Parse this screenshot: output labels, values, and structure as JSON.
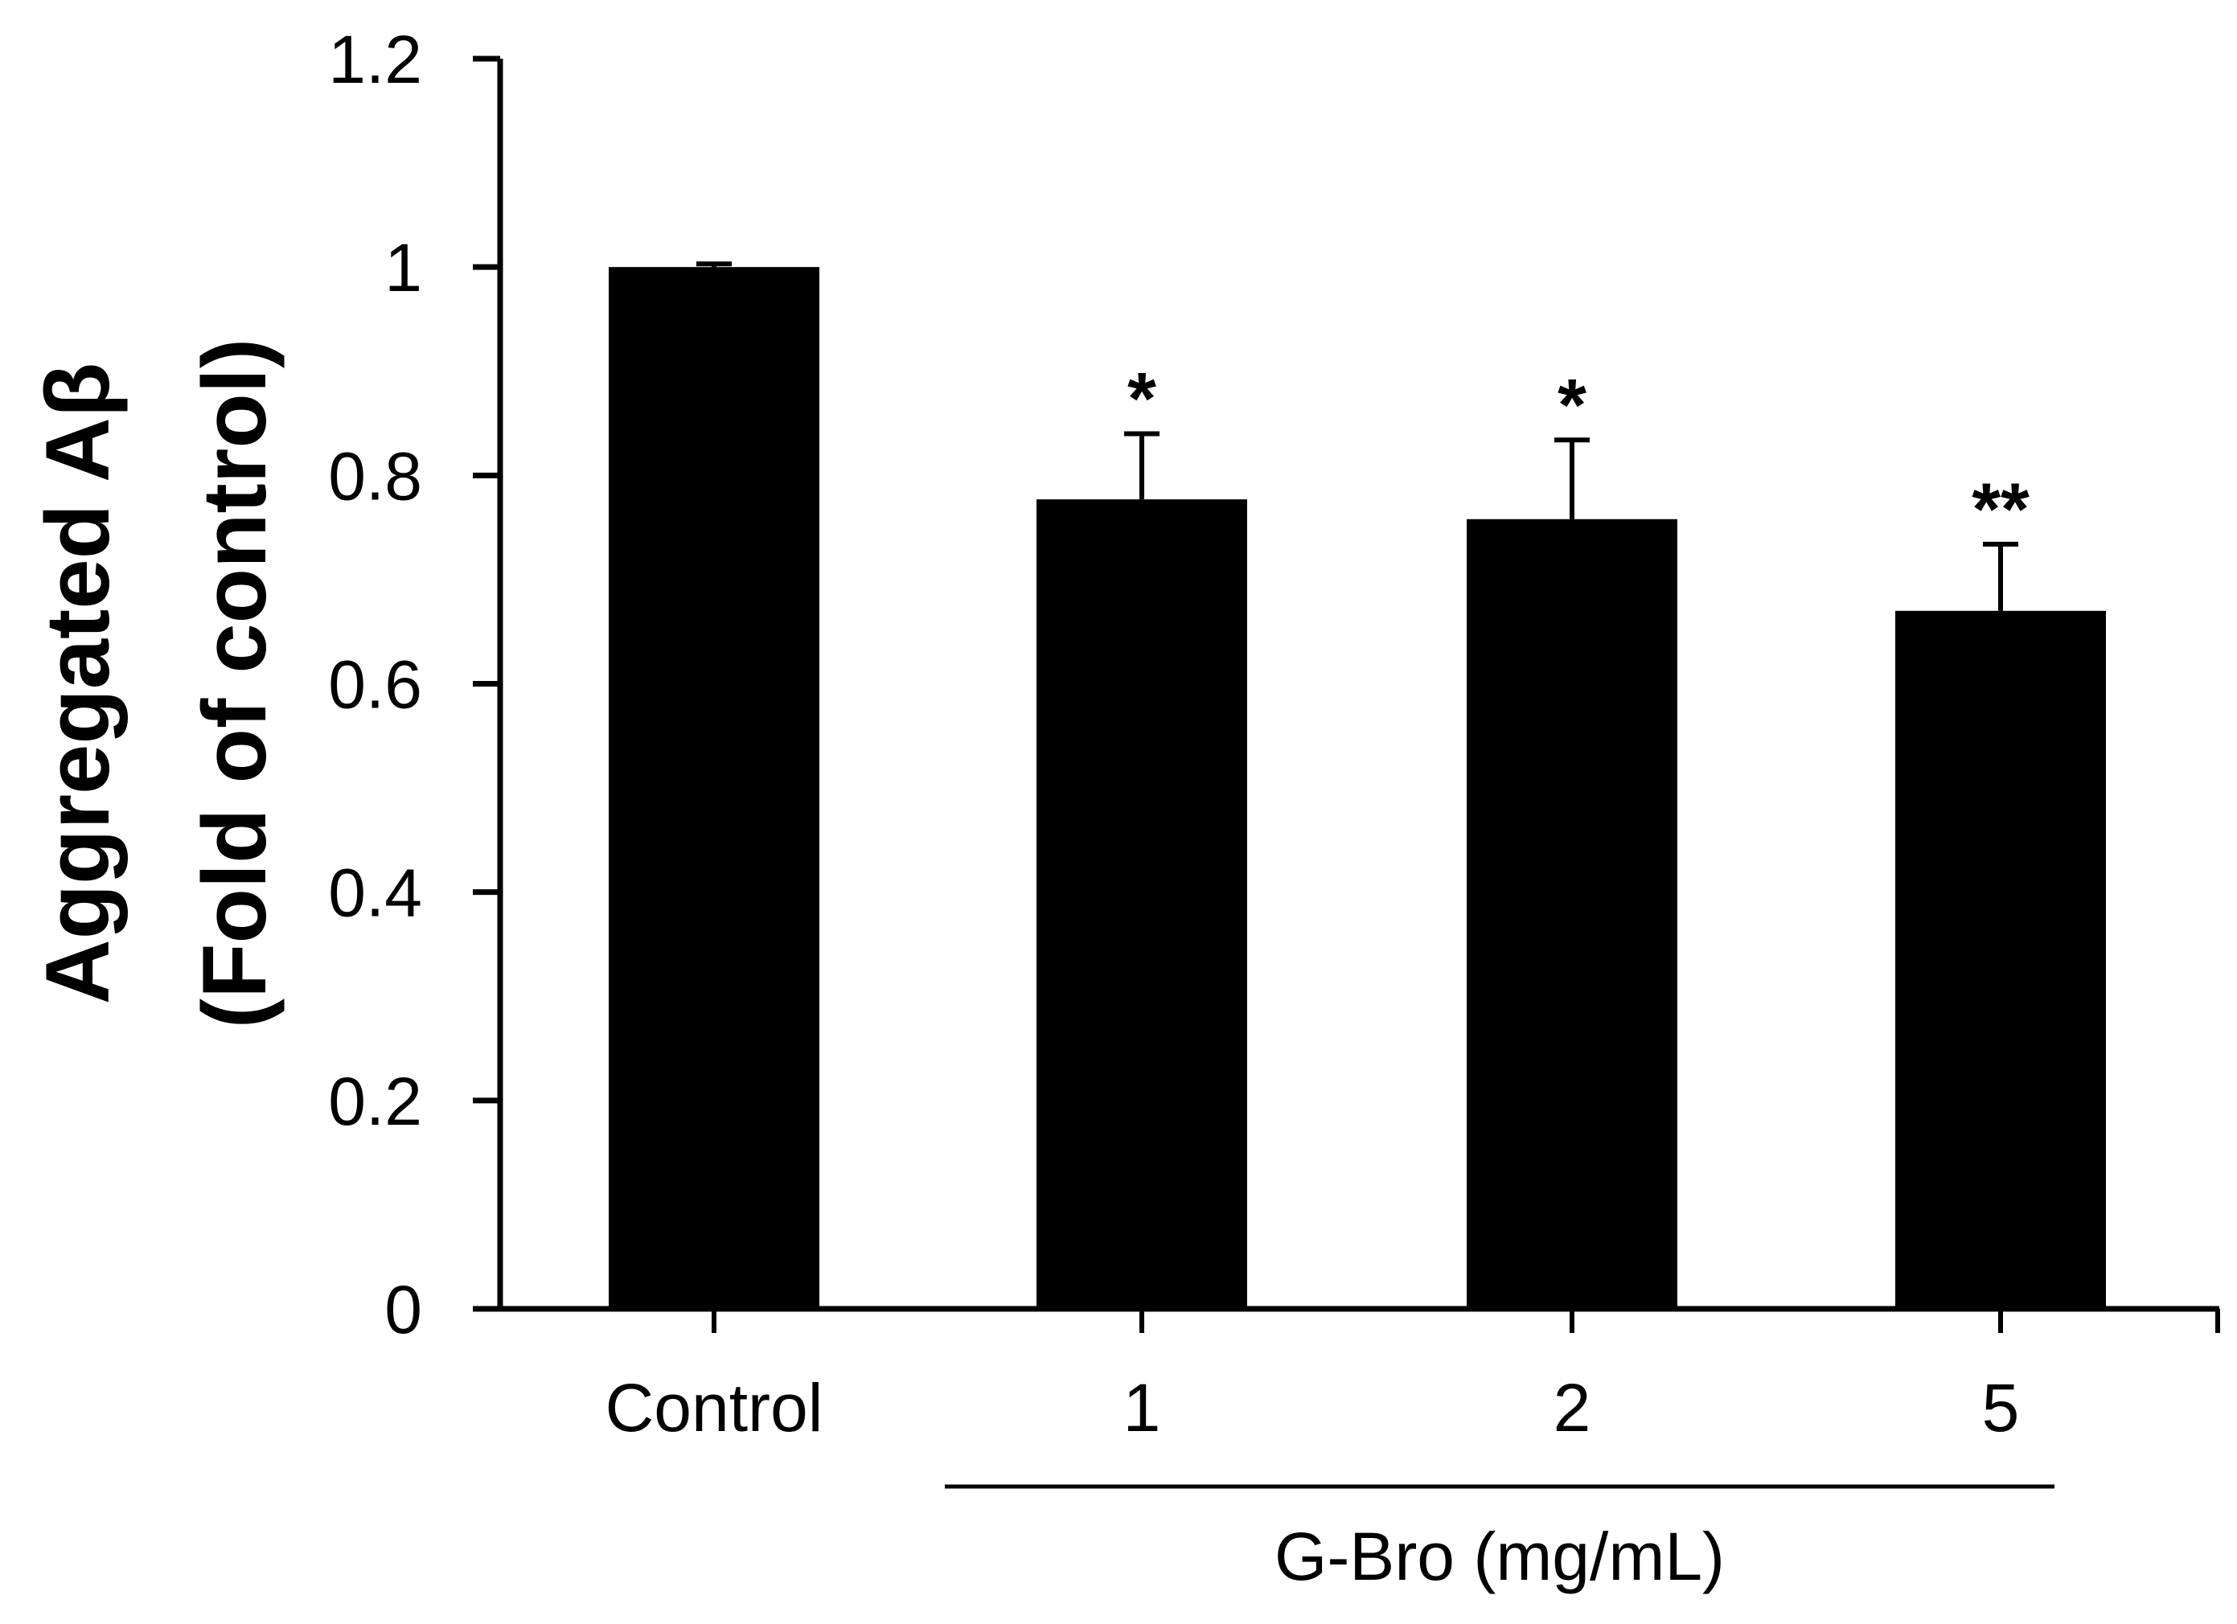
{
  "chart_data": {
    "type": "bar",
    "categories": [
      "Control",
      "1",
      "2",
      "5"
    ],
    "values": [
      1.0,
      0.777,
      0.758,
      0.67
    ],
    "error_bars": [
      0.003,
      0.063,
      0.076,
      0.064
    ],
    "significance": [
      "",
      "*",
      "*",
      "**"
    ],
    "ylim": [
      0,
      1.2
    ],
    "yticks": [
      0,
      0.2,
      0.4,
      0.6,
      0.8,
      1.0,
      1.2
    ],
    "ytick_labels": [
      "0",
      "0.2",
      "0.4",
      "0.6",
      "0.8",
      "1",
      "1.2"
    ],
    "ylabel_line1": "Aggregated Aβ",
    "ylabel_line2": "(Fold of control)",
    "group_label": "G-Bro (mg/mL)",
    "title": "",
    "xlabel": "",
    "colors": {
      "bar": "#000000",
      "axis": "#000000",
      "background": "#ffffff"
    }
  }
}
